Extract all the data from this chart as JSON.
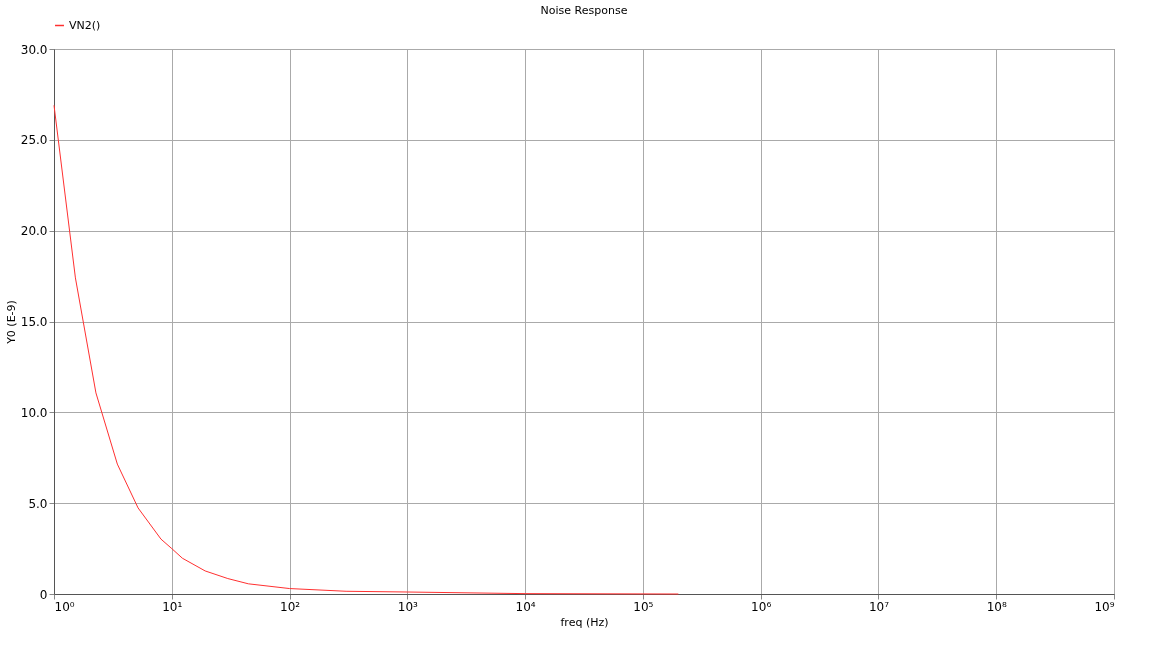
{
  "chart_data": {
    "type": "line",
    "title": "Noise Response",
    "xlabel": "freq (Hz)",
    "ylabel": "Y0 (E-9)",
    "x": [
      1,
      1.52,
      2.27,
      3.45,
      5.17,
      8.1,
      10,
      12.3,
      19.2,
      29.9,
      44.7,
      100,
      302,
      1000,
      10000,
      200000
    ],
    "series": [
      {
        "name": "VN2()",
        "color": "#ff3030",
        "values": [
          26.9,
          17.4,
          11.07,
          7.15,
          4.74,
          3.02,
          2.5,
          1.97,
          1.27,
          0.85,
          0.56,
          0.3,
          0.15,
          0.11,
          0.02,
          0.0
        ]
      }
    ],
    "log": "x",
    "xlim": [
      1,
      1000000000
    ],
    "xticks": [
      {
        "value": 1,
        "label": "10⁰"
      },
      {
        "value": 10,
        "label": "10¹"
      },
      {
        "value": 100,
        "label": "10²"
      },
      {
        "value": 1000,
        "label": "10³"
      },
      {
        "value": 10000,
        "label": "10⁴"
      },
      {
        "value": 100000,
        "label": "10⁵"
      },
      {
        "value": 1000000,
        "label": "10⁶"
      },
      {
        "value": 10000000,
        "label": "10⁷"
      },
      {
        "value": 100000000,
        "label": "10⁸"
      },
      {
        "value": 1000000000,
        "label": "10⁹"
      }
    ],
    "ylim": [
      0,
      30
    ],
    "yticks": [
      0,
      {
        "value": 5,
        "label": "5.0"
      },
      {
        "value": 10,
        "label": "10.0"
      },
      {
        "value": 15,
        "label": "15.0"
      },
      {
        "value": 20,
        "label": "20.0"
      },
      {
        "value": 25,
        "label": "25.0"
      },
      {
        "value": 30,
        "label": "30.0"
      }
    ],
    "grid": true,
    "legend": "top left",
    "line_style": "solid",
    "marker": "none"
  }
}
